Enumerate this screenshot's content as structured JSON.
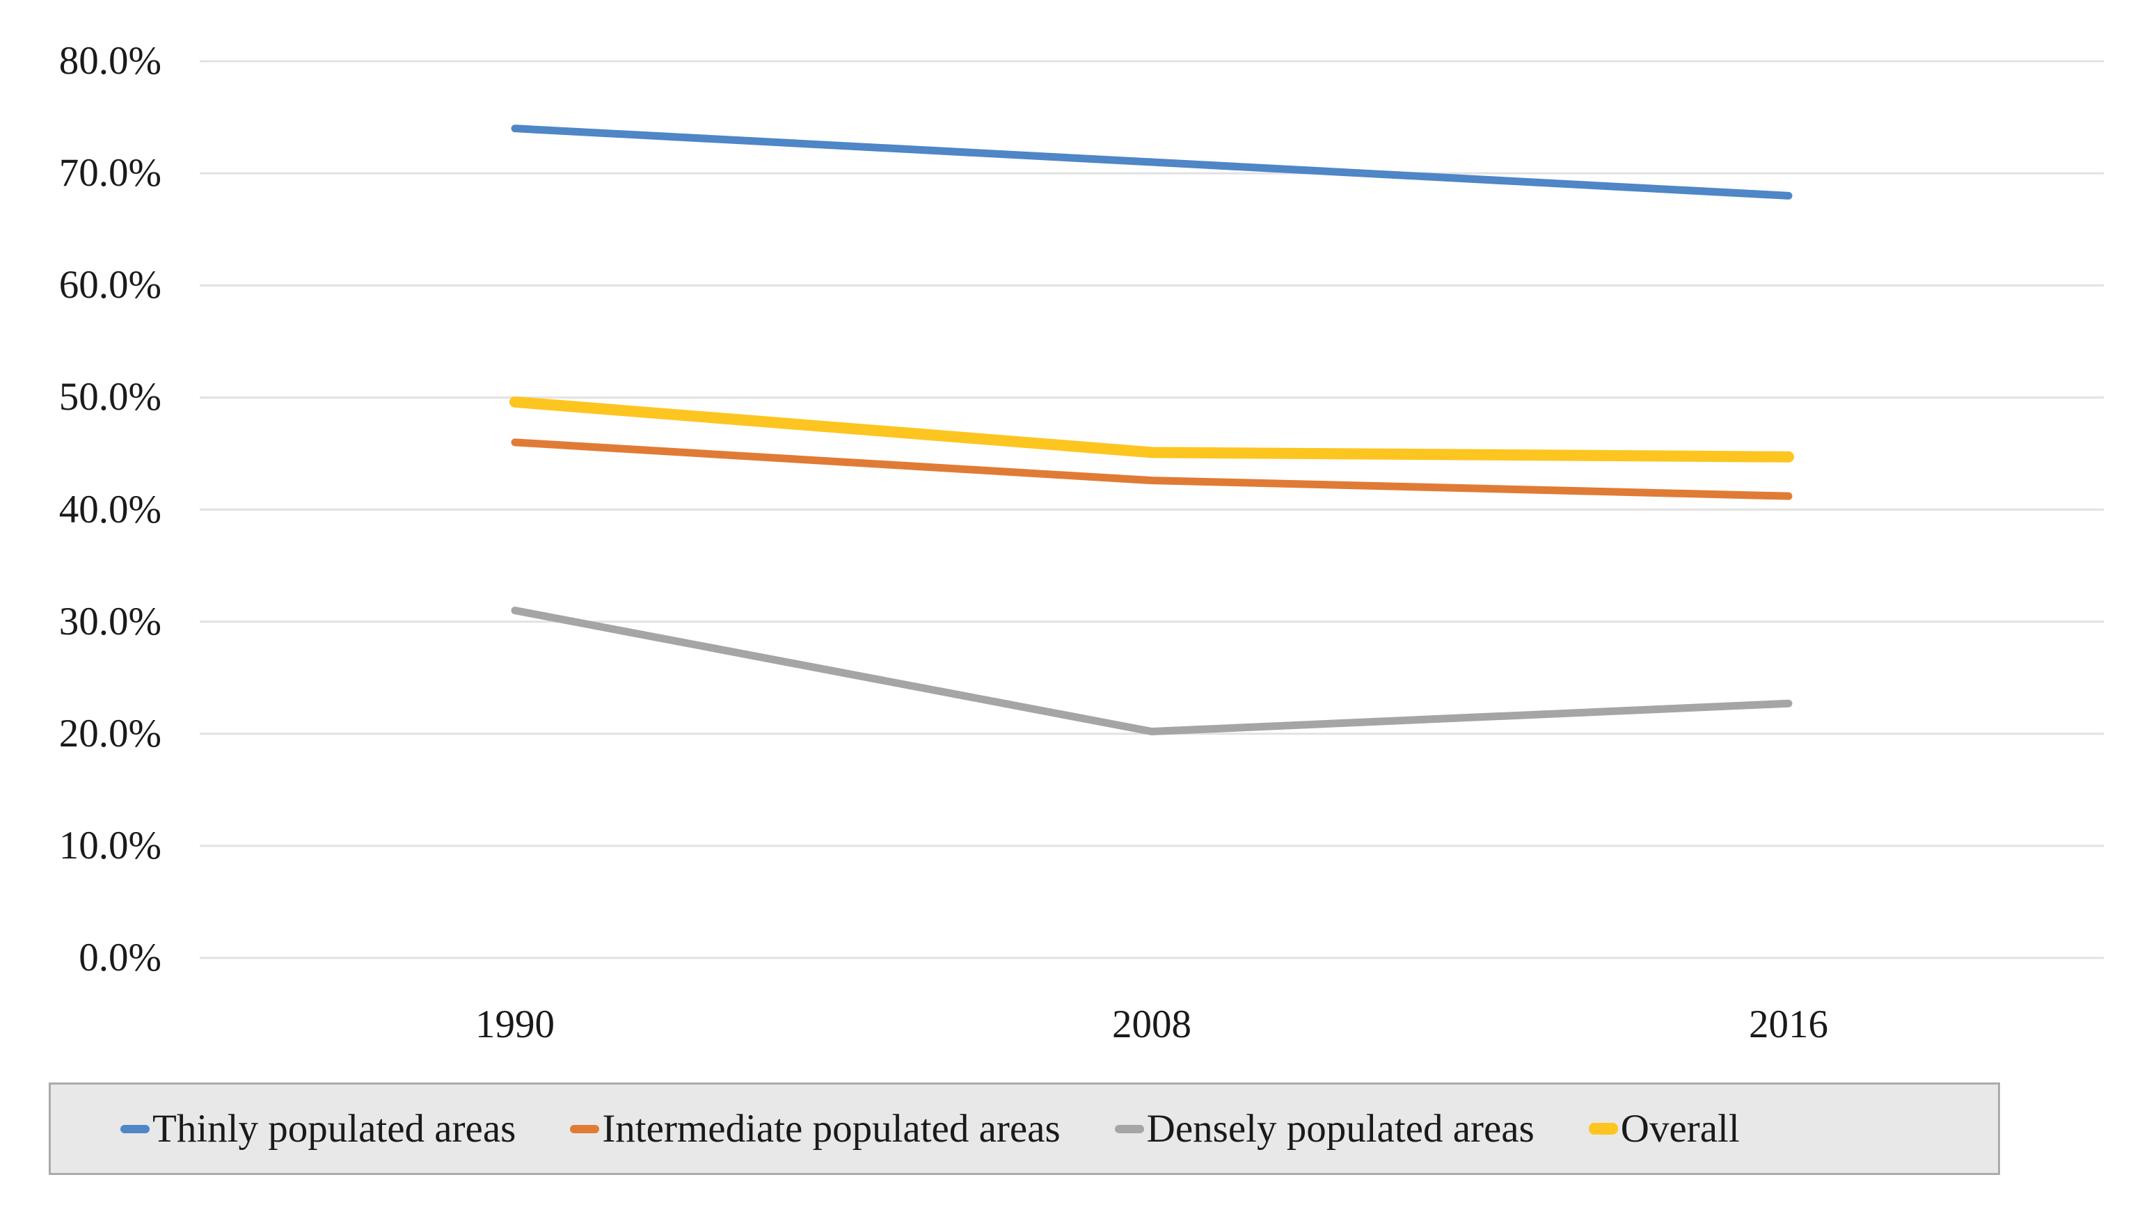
{
  "chart_data": {
    "type": "line",
    "title": "",
    "xlabel": "",
    "ylabel": "",
    "categories": [
      "1990",
      "2008",
      "2016"
    ],
    "series": [
      {
        "name": "Thinly populated areas",
        "color": "#4E86C6",
        "line_width": 11,
        "values": [
          74.0,
          71.0,
          68.0
        ]
      },
      {
        "name": "Intermediate populated areas",
        "color": "#E07B35",
        "line_width": 11,
        "values": [
          46.0,
          42.6,
          41.2
        ]
      },
      {
        "name": "Densely populated areas",
        "color": "#A5A5A5",
        "line_width": 11,
        "values": [
          31.0,
          20.2,
          22.7
        ]
      },
      {
        "name": "Overall",
        "color": "#FDC520",
        "line_width": 16,
        "values": [
          49.6,
          45.1,
          44.7
        ]
      }
    ],
    "ylim": [
      0,
      80
    ],
    "y_tick_step": 10,
    "y_ticks": [
      "0.0%",
      "10.0%",
      "20.0%",
      "30.0%",
      "40.0%",
      "50.0%",
      "60.0%",
      "70.0%",
      "80.0%"
    ],
    "grid": "horizontal",
    "legend_position": "bottom"
  },
  "colors": {
    "background": "#FFFFFF",
    "gridline": "#E2E2E2",
    "legend_background": "#E8E8E8",
    "legend_border": "#ABABAB",
    "text": "#1A1A1A"
  }
}
